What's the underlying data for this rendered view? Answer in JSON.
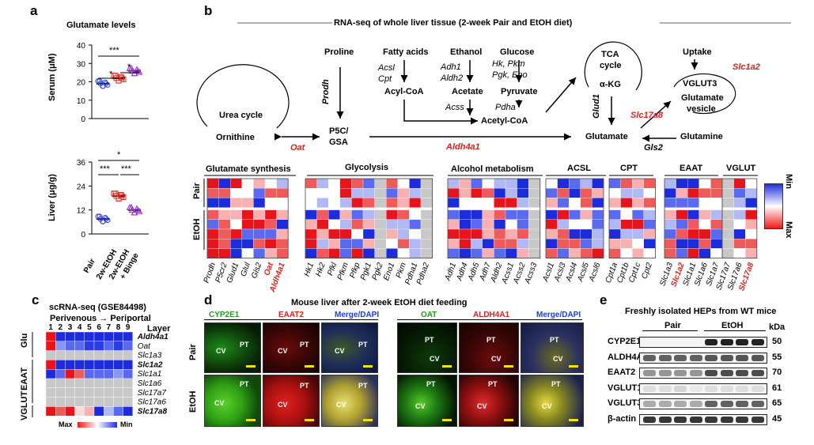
{
  "panel_labels": {
    "a": "a",
    "b": "b",
    "c": "c",
    "d": "d",
    "e": "e"
  },
  "panel_a": {
    "title": "Glutamate levels",
    "serum": {
      "ylabel": "Serum (μM)",
      "yticks": [
        "0",
        "10",
        "20",
        "30",
        "40"
      ],
      "sig": [
        "***",
        "*",
        "*"
      ],
      "groups": [
        {
          "name": "Pair",
          "mean": 19,
          "color": "#2b3fd6",
          "marker": "circle"
        },
        {
          "name": "2w-EtOH",
          "mean": 22,
          "color": "#e0201b",
          "marker": "square"
        },
        {
          "name": "2w-EtOH + Binge",
          "mean": 26,
          "color": "#9b2fd0",
          "marker": "triangle"
        }
      ]
    },
    "liver": {
      "ylabel": "Liver (μg/g)",
      "yticks": [
        "0",
        "12",
        "24",
        "36"
      ],
      "sig": [
        "*",
        "***",
        "***"
      ],
      "groups": [
        {
          "name": "Pair",
          "mean": 7.5,
          "color": "#2b3fd6"
        },
        {
          "name": "2w-EtOH",
          "mean": 19,
          "color": "#e0201b"
        },
        {
          "name": "2w-EtOH + Binge",
          "mean": 12,
          "color": "#9b2fd0"
        }
      ]
    },
    "xlabels": [
      "Pair",
      "2w-EtOH",
      "2w-EtOH",
      "+ Binge"
    ]
  },
  "panel_b": {
    "title": "RNA-seq of whole liver tissue (2-week Pair and EtOH diet)",
    "nodes": {
      "urea": "Urea cycle",
      "ornithine": "Ornithine",
      "proline": "Proline",
      "p5c": "P5C/",
      "gsa": "GSA",
      "fatty": "Fatty acids",
      "acylcoa": "Acyl-CoA",
      "ethanol": "Ethanol",
      "acetate": "Acetate",
      "glucose": "Glucose",
      "pyruvate": "Pyruvate",
      "acetylcoa": "Acetyl-CoA",
      "tca1": "TCA",
      "tca2": "cycle",
      "akg": "α-KG",
      "glutamate": "Glutamate",
      "uptake": "Uptake",
      "vglut3": "VGLUT3",
      "vesicle1": "Glutamate",
      "vesicle2": "vesicle",
      "glutamine": "Glutamine"
    },
    "enzymes": {
      "prodh": "Prodh",
      "oat": "Oat",
      "acsl": "Acsl",
      "cpt": "Cpt",
      "adh1": "Adh1",
      "aldh2": "Aldh2",
      "acss": "Acss",
      "hk": "Hk, Pkm",
      "pgk": "Pgk, Eno",
      "pdha": "Pdha",
      "glud1": "Glud1",
      "aldh4a1": "Aldh4a1",
      "slc1a2": "Slc1a2",
      "slc17a8": "Slc17a8",
      "gls2": "Gls2"
    },
    "heatmap": {
      "row_groups": [
        "Pair",
        "EtOH"
      ],
      "group_titles": [
        "Glutamate synthesis",
        "Glycolysis",
        "Alcohol metabolism",
        "ACSL",
        "CPT",
        "EAAT",
        "VGLUT"
      ],
      "genes": [
        "Prodh",
        "P5cr2",
        "Glud1",
        "Glul",
        "Gls2",
        "Oat",
        "Aldh4a1",
        "Hk1",
        "Hk2",
        "Pfkl",
        "Pfkm",
        "Pfkp",
        "Pgk1",
        "Pgk2",
        "Eno1",
        "Pkm",
        "Pdha1",
        "Pdha2",
        "Adh1",
        "Adh4",
        "Adh5",
        "Adh7",
        "Aldh2",
        "Acss1",
        "Acss2",
        "Acss3",
        "Acsl1",
        "Acsl3",
        "Acsl4",
        "Acsl5",
        "Acsl6",
        "Cpt1a",
        "Cpt1b",
        "Cpt1c",
        "Cpt2",
        "Slc1a3",
        "Slc1a2",
        "Slc1a1",
        "Slc1a6",
        "Slc1a7",
        "Slc17a7",
        "Slc17a6",
        "Slc17a8"
      ],
      "red_genes": [
        "Oat",
        "Aldh4a1",
        "Slc1a2",
        "Slc17a8"
      ],
      "legend_max": "Max",
      "legend_min": "Min"
    }
  },
  "panel_c": {
    "title": "scRNA-seq (GSE84498)",
    "subtitle": "Perivenous → Periportal",
    "layers": [
      "1",
      "2",
      "3",
      "4",
      "5",
      "6",
      "7",
      "8",
      "9"
    ],
    "layer_label": "Layer",
    "groups": [
      "Glu",
      "EAAT",
      "VGLUT"
    ],
    "genes": [
      "Aldh4a1",
      "Oat",
      "Slc1a3",
      "Slc1a2",
      "Slc1a1",
      "Slc1a6",
      "Slc17a7",
      "Slc17a6",
      "Slc17a8"
    ],
    "bold_genes": [
      "Aldh4a1",
      "Slc1a2",
      "Slc17a8"
    ],
    "legend_max": "Max",
    "legend_min": "Min"
  },
  "panel_d": {
    "title": "Mouse liver after 2-week EtOH diet feeding",
    "columns": [
      "CYP2E1",
      "EAAT2",
      "Merge/DAPI",
      "OAT",
      "ALDH4A1",
      "Merge/DAPI"
    ],
    "rows": [
      "Pair",
      "EtOH"
    ],
    "labels": {
      "cv": "CV",
      "pt": "PT"
    }
  },
  "panel_e": {
    "title": "Freshly isolated HEPs from WT mice",
    "groups": [
      "Pair",
      "EtOH"
    ],
    "kda": "kDa",
    "proteins": [
      {
        "name": "CYP2E1",
        "kda": "50"
      },
      {
        "name": "ALDH4A1",
        "kda": "55"
      },
      {
        "name": "EAAT2",
        "kda": "70"
      },
      {
        "name": "VGLUT1",
        "kda": "61"
      },
      {
        "name": "VGLUT3",
        "kda": "65"
      },
      {
        "name": "β-actin",
        "kda": "45"
      }
    ]
  }
}
